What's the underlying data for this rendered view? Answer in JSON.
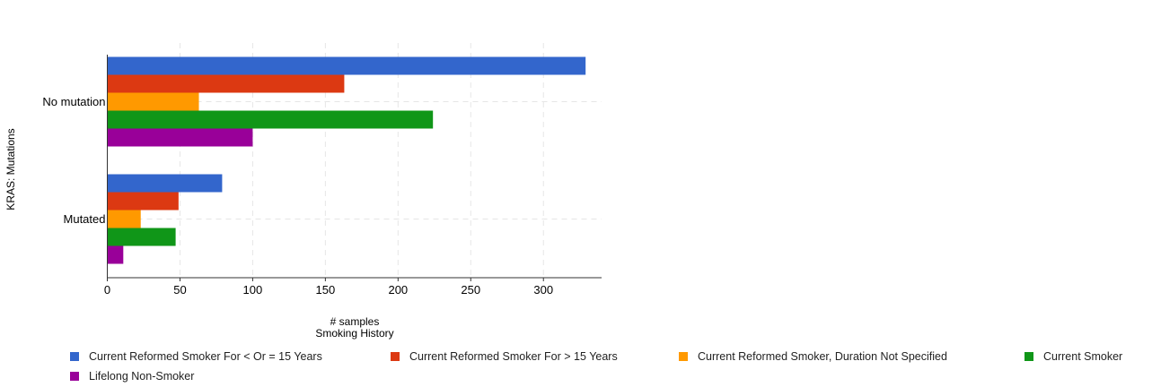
{
  "chart_data": {
    "type": "bar",
    "orientation": "horizontal",
    "title": "",
    "xlabel": "# samples",
    "xlabel2": "Smoking History",
    "ylabel": "KRAS: Mutations",
    "categories": [
      "No mutation",
      "Mutated"
    ],
    "xlim": [
      0,
      340
    ],
    "xticks": [
      0,
      50,
      100,
      150,
      200,
      250,
      300
    ],
    "grid": true,
    "legend_position": "bottom",
    "series": [
      {
        "name": "Current Reformed Smoker For < Or = 15 Years",
        "color": "#3366cc",
        "values": [
          329,
          79
        ]
      },
      {
        "name": "Current Reformed Smoker For > 15 Years",
        "color": "#dc3912",
        "values": [
          163,
          49
        ]
      },
      {
        "name": "Current Reformed Smoker, Duration Not Specified",
        "color": "#ff9900",
        "values": [
          63,
          23
        ]
      },
      {
        "name": "Current Smoker",
        "color": "#109618",
        "values": [
          224,
          47
        ]
      },
      {
        "name": "Lifelong Non-Smoker",
        "color": "#990099",
        "values": [
          100,
          11
        ]
      }
    ]
  }
}
